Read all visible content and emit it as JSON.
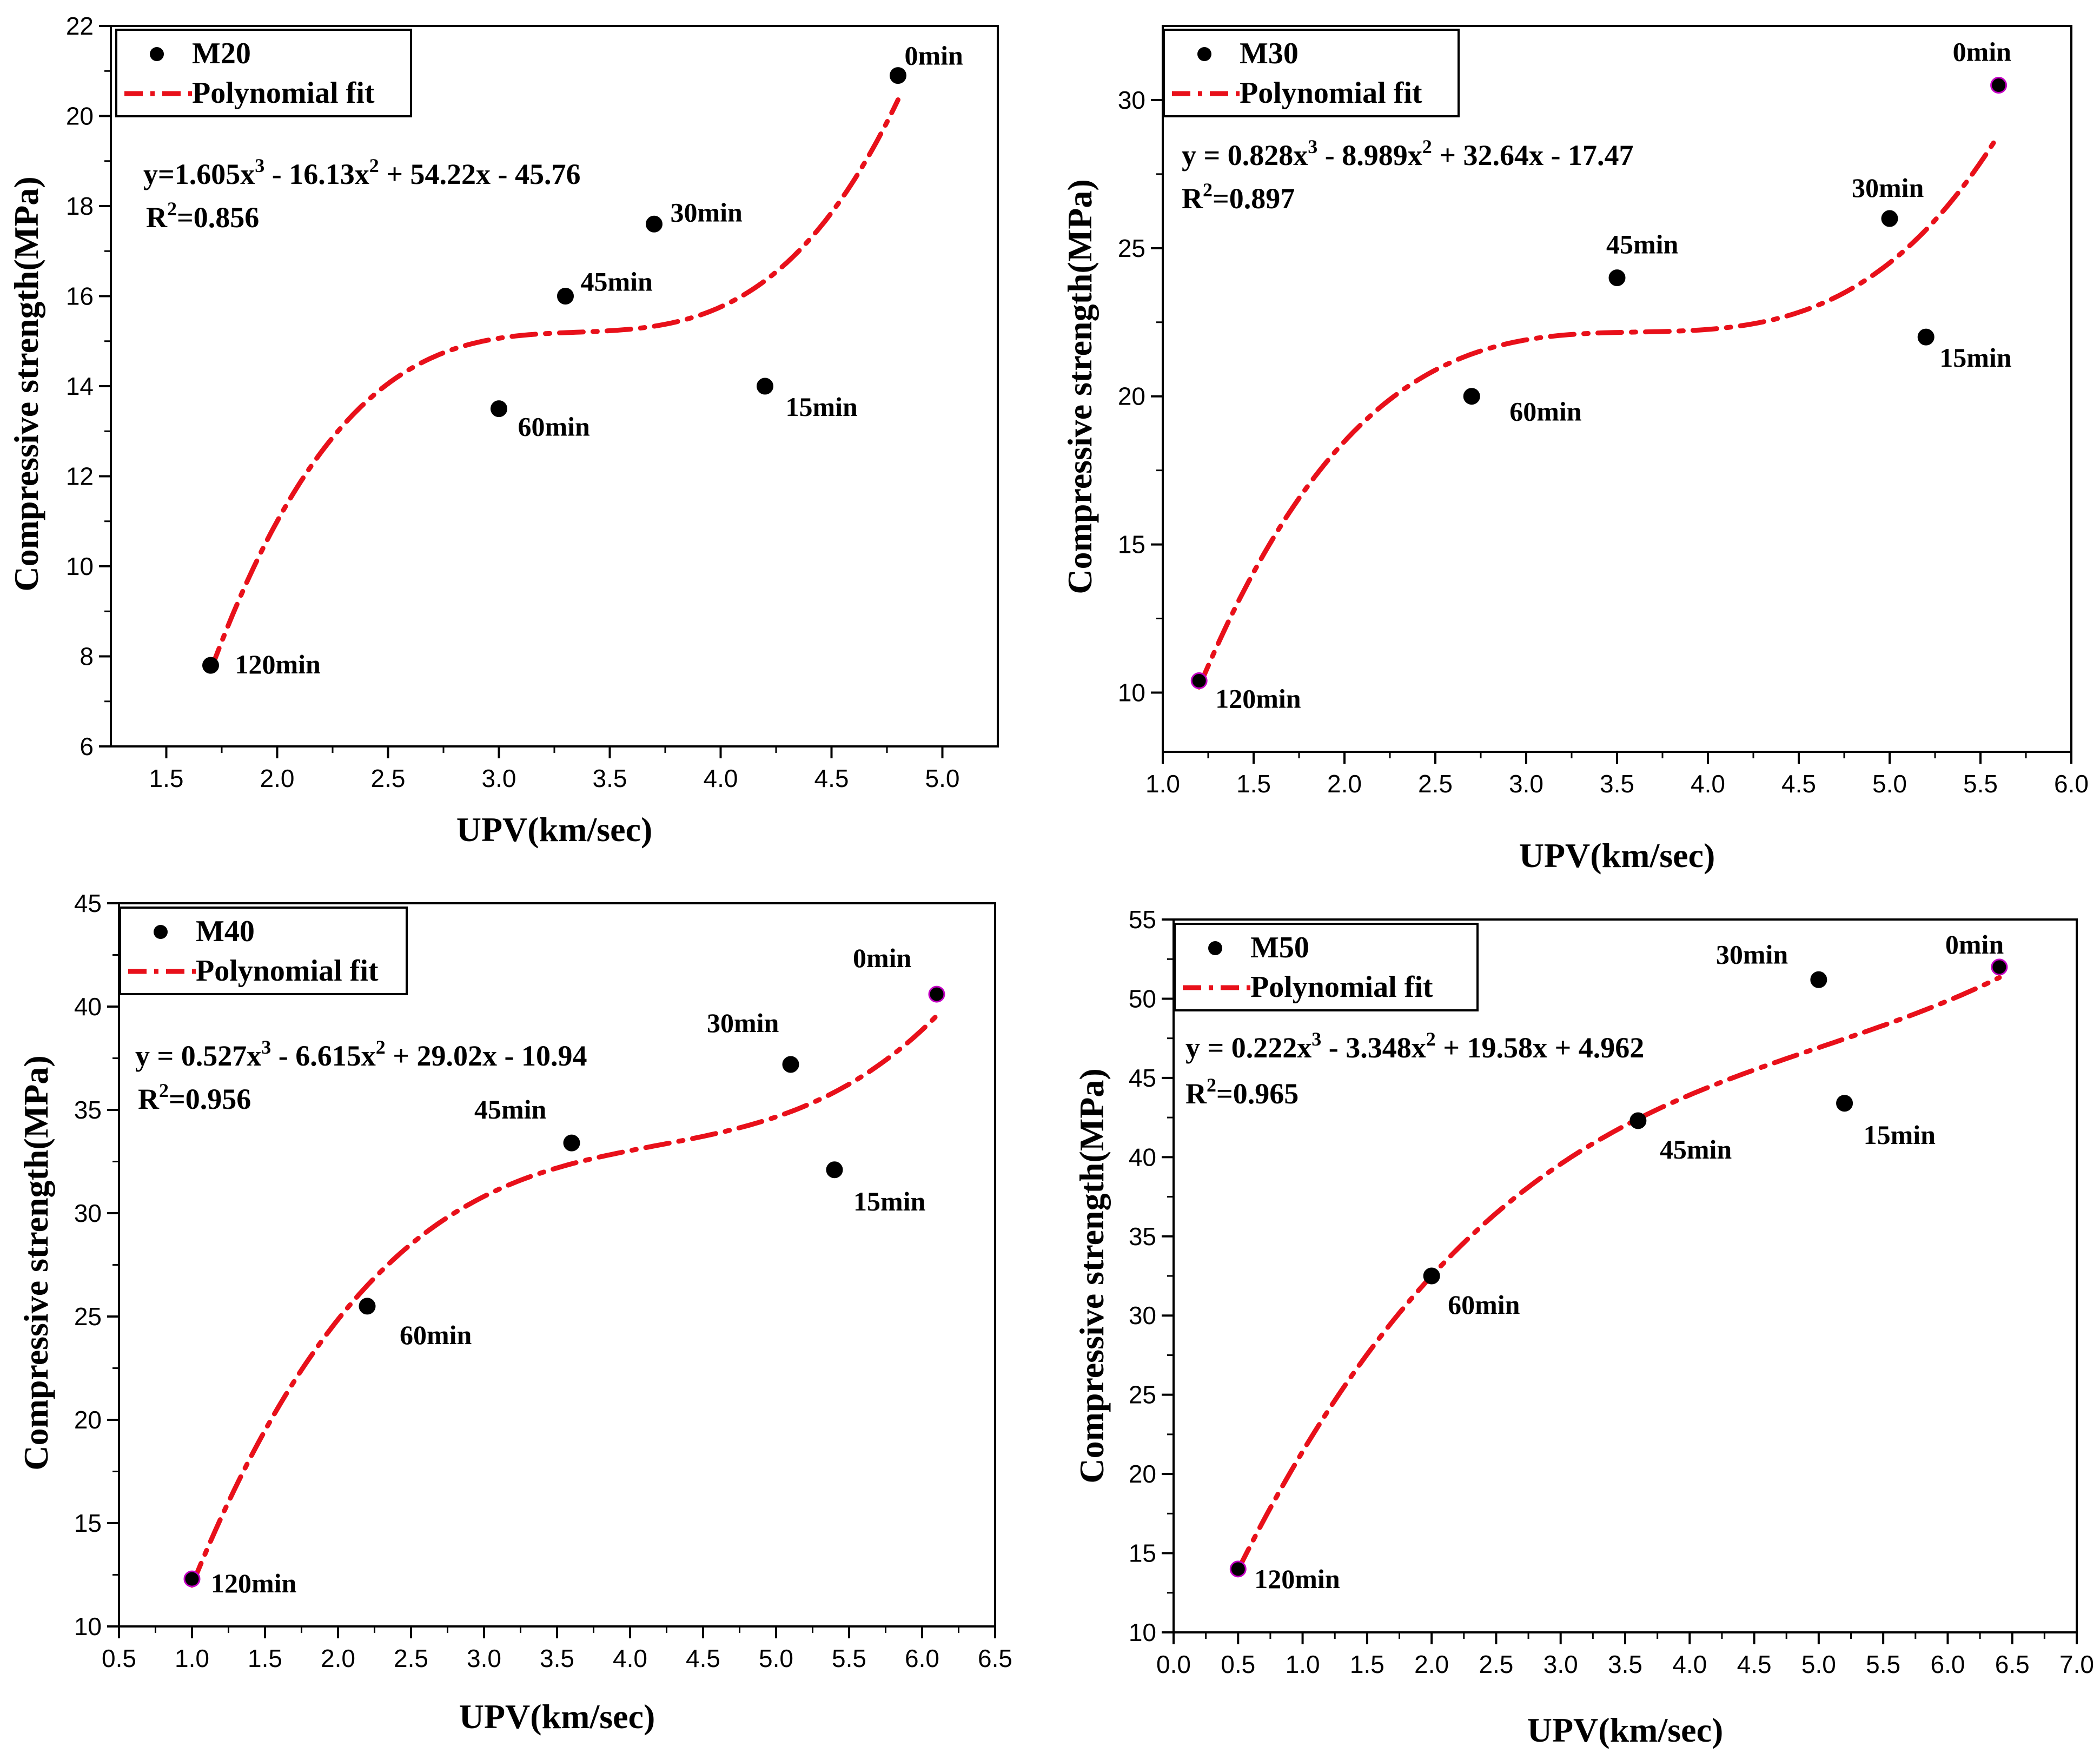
{
  "chart_data": [
    {
      "type": "scatter",
      "grade": "M20",
      "xlabel": "UPV(km/sec)",
      "ylabel": "Compressive strength(MPa)",
      "xlim": [
        1.25,
        5.25
      ],
      "ylim": [
        6,
        22
      ],
      "xticks": [
        "1.5",
        "2.0",
        "2.5",
        "3.0",
        "3.5",
        "4.0",
        "4.5",
        "5.0"
      ],
      "yticks": [
        "6",
        "8",
        "10",
        "12",
        "14",
        "16",
        "18",
        "20",
        "22"
      ],
      "legend": {
        "series": "M20",
        "fit": "Polynomial fit"
      },
      "equation": {
        "main": "y=1.605x",
        "rest": " - 16.13x",
        "tail": " + 54.22x - 45.76",
        "r2_prefix": "R",
        "r2_value": "=0.856"
      },
      "coef": [
        1.605,
        -16.13,
        54.22,
        -45.76
      ],
      "fit_range": [
        1.7,
        4.8
      ],
      "points": [
        {
          "x": 1.7,
          "y": 7.8,
          "label": "120min"
        },
        {
          "x": 3.0,
          "y": 13.5,
          "label": "60min"
        },
        {
          "x": 3.3,
          "y": 16.0,
          "label": "45min"
        },
        {
          "x": 3.7,
          "y": 17.6,
          "label": "30min"
        },
        {
          "x": 4.2,
          "y": 14.0,
          "label": "15min"
        },
        {
          "x": 4.8,
          "y": 20.9,
          "label": "0min"
        }
      ]
    },
    {
      "type": "scatter",
      "grade": "M30",
      "xlabel": "UPV(km/sec)",
      "ylabel": "Compressive strength(MPa)",
      "xlim": [
        1.0,
        6.0
      ],
      "ylim": [
        8,
        32.5
      ],
      "xticks": [
        "1.0",
        "1.5",
        "2.0",
        "2.5",
        "3.0",
        "3.5",
        "4.0",
        "4.5",
        "5.0",
        "5.5",
        "6.0"
      ],
      "yticks": [
        "10",
        "15",
        "20",
        "25",
        "30"
      ],
      "legend": {
        "series": "M30",
        "fit": "Polynomial fit"
      },
      "equation": {
        "main": "y = 0.828x",
        "rest": " - 8.989x",
        "tail": " + 32.64x - 17.47",
        "r2_prefix": "R",
        "r2_value": "=0.897"
      },
      "coef": [
        0.828,
        -8.989,
        32.64,
        -17.47
      ],
      "fit_range": [
        1.2,
        5.6
      ],
      "points": [
        {
          "x": 1.2,
          "y": 10.4,
          "label": "120min"
        },
        {
          "x": 2.7,
          "y": 20.0,
          "label": "60min"
        },
        {
          "x": 3.5,
          "y": 24.0,
          "label": "45min"
        },
        {
          "x": 5.0,
          "y": 26.0,
          "label": "30min"
        },
        {
          "x": 5.2,
          "y": 22.0,
          "label": "15min"
        },
        {
          "x": 5.6,
          "y": 30.5,
          "label": "0min"
        }
      ]
    },
    {
      "type": "scatter",
      "grade": "M40",
      "xlabel": "UPV(km/sec)",
      "ylabel": "Compressive strength(MPa)",
      "xlim": [
        0.5,
        6.5
      ],
      "ylim": [
        10,
        45
      ],
      "xticks": [
        "0.5",
        "1.0",
        "1.5",
        "2.0",
        "2.5",
        "3.0",
        "3.5",
        "4.0",
        "4.5",
        "5.0",
        "5.5",
        "6.0",
        "6.5"
      ],
      "yticks": [
        "10",
        "15",
        "20",
        "25",
        "30",
        "35",
        "40",
        "45"
      ],
      "legend": {
        "series": "M40",
        "fit": "Polynomial fit"
      },
      "equation": {
        "main": "y = 0.527x",
        "rest": " - 6.615x",
        "tail": " + 29.02x - 10.94",
        "r2_prefix": "R",
        "r2_value": "=0.956"
      },
      "coef": [
        0.527,
        -6.615,
        29.02,
        -10.94
      ],
      "fit_range": [
        1.0,
        6.1
      ],
      "points": [
        {
          "x": 1.0,
          "y": 12.3,
          "label": "120min"
        },
        {
          "x": 2.2,
          "y": 25.5,
          "label": "60min"
        },
        {
          "x": 3.6,
          "y": 33.4,
          "label": "45min"
        },
        {
          "x": 5.1,
          "y": 37.2,
          "label": "30min"
        },
        {
          "x": 5.4,
          "y": 32.1,
          "label": "15min"
        },
        {
          "x": 6.1,
          "y": 40.6,
          "label": "0min"
        }
      ]
    },
    {
      "type": "scatter",
      "grade": "M50",
      "xlabel": "UPV(km/sec)",
      "ylabel": "Compressive strength(MPa)",
      "xlim": [
        0.0,
        7.0
      ],
      "ylim": [
        10,
        55
      ],
      "xticks": [
        "0.0",
        "0.5",
        "1.0",
        "1.5",
        "2.0",
        "2.5",
        "3.0",
        "3.5",
        "4.0",
        "4.5",
        "5.0",
        "5.5",
        "6.0",
        "6.5",
        "7.0"
      ],
      "yticks": [
        "10",
        "15",
        "20",
        "25",
        "30",
        "35",
        "40",
        "45",
        "50",
        "55"
      ],
      "legend": {
        "series": "M50",
        "fit": "Polynomial fit"
      },
      "equation": {
        "main": "y = 0.222x",
        "rest": " - 3.348x",
        "tail": " + 19.58x + 4.962",
        "r2_prefix": "R",
        "r2_value": "=0.965"
      },
      "coef": [
        0.222,
        -3.348,
        19.58,
        4.962
      ],
      "fit_range": [
        0.5,
        6.4
      ],
      "points": [
        {
          "x": 0.5,
          "y": 14.0,
          "label": "120min"
        },
        {
          "x": 2.0,
          "y": 32.5,
          "label": "60min"
        },
        {
          "x": 3.6,
          "y": 42.3,
          "label": "45min"
        },
        {
          "x": 5.0,
          "y": 51.2,
          "label": "30min"
        },
        {
          "x": 5.2,
          "y": 43.4,
          "label": "15min"
        },
        {
          "x": 6.4,
          "y": 52.0,
          "label": "0min"
        }
      ]
    }
  ],
  "colors": {
    "fit": "#e8101a",
    "point": "#000000",
    "point_edge": "#c400c4"
  }
}
